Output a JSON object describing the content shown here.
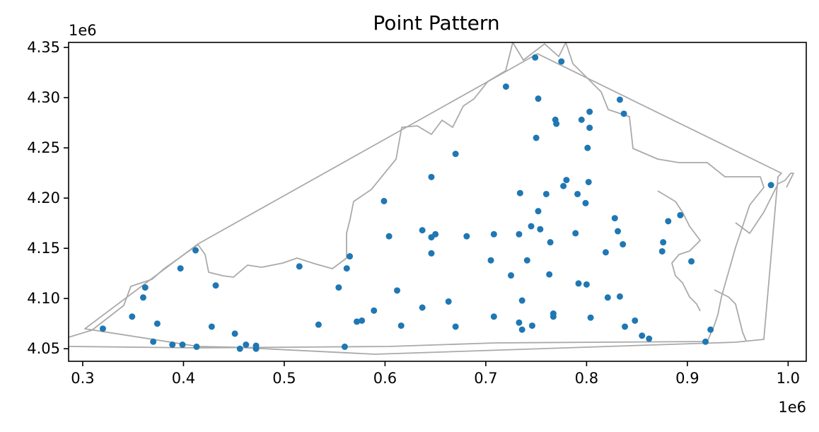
{
  "chart_data": {
    "type": "scatter",
    "title": "Point Pattern",
    "xlabel": "",
    "ylabel": "",
    "x_offset_label": "1e6",
    "y_offset_label": "1e6",
    "xlim": [
      0.286,
      1.018
    ],
    "ylim": [
      4.0375,
      4.355
    ],
    "x_ticks": [
      {
        "value": 0.3,
        "label": "0.3"
      },
      {
        "value": 0.4,
        "label": "0.4"
      },
      {
        "value": 0.5,
        "label": "0.5"
      },
      {
        "value": 0.6,
        "label": "0.6"
      },
      {
        "value": 0.7,
        "label": "0.7"
      },
      {
        "value": 0.8,
        "label": "0.8"
      },
      {
        "value": 0.9,
        "label": "0.9"
      },
      {
        "value": 1.0,
        "label": "1.0"
      }
    ],
    "y_ticks": [
      {
        "value": 4.05,
        "label": "4.05"
      },
      {
        "value": 4.1,
        "label": "4.10"
      },
      {
        "value": 4.15,
        "label": "4.15"
      },
      {
        "value": 4.2,
        "label": "4.20"
      },
      {
        "value": 4.25,
        "label": "4.25"
      },
      {
        "value": 4.3,
        "label": "4.30"
      },
      {
        "value": 4.35,
        "label": "4.35"
      }
    ],
    "grid": false,
    "colors": {
      "points": "#1f77b4",
      "boundary": "#aaaaaa",
      "axes": "#000000"
    },
    "points": [
      [
        0.749,
        4.34
      ],
      [
        0.775,
        4.336
      ],
      [
        0.72,
        4.311
      ],
      [
        0.752,
        4.299
      ],
      [
        0.833,
        4.298
      ],
      [
        0.803,
        4.286
      ],
      [
        0.837,
        4.284
      ],
      [
        0.769,
        4.278
      ],
      [
        0.795,
        4.278
      ],
      [
        0.77,
        4.274
      ],
      [
        0.803,
        4.27
      ],
      [
        0.75,
        4.26
      ],
      [
        0.801,
        4.25
      ],
      [
        0.67,
        4.244
      ],
      [
        0.646,
        4.221
      ],
      [
        0.78,
        4.218
      ],
      [
        0.802,
        4.216
      ],
      [
        0.983,
        4.213
      ],
      [
        0.777,
        4.212
      ],
      [
        0.734,
        4.205
      ],
      [
        0.76,
        4.204
      ],
      [
        0.791,
        4.204
      ],
      [
        0.599,
        4.197
      ],
      [
        0.799,
        4.195
      ],
      [
        0.752,
        4.187
      ],
      [
        0.893,
        4.183
      ],
      [
        0.828,
        4.18
      ],
      [
        0.881,
        4.177
      ],
      [
        0.745,
        4.172
      ],
      [
        0.754,
        4.169
      ],
      [
        0.637,
        4.168
      ],
      [
        0.831,
        4.167
      ],
      [
        0.789,
        4.165
      ],
      [
        0.708,
        4.164
      ],
      [
        0.733,
        4.164
      ],
      [
        0.65,
        4.164
      ],
      [
        0.604,
        4.162
      ],
      [
        0.681,
        4.162
      ],
      [
        0.646,
        4.161
      ],
      [
        0.876,
        4.156
      ],
      [
        0.764,
        4.156
      ],
      [
        0.836,
        4.154
      ],
      [
        0.412,
        4.148
      ],
      [
        0.875,
        4.147
      ],
      [
        0.819,
        4.146
      ],
      [
        0.646,
        4.145
      ],
      [
        0.565,
        4.142
      ],
      [
        0.705,
        4.138
      ],
      [
        0.741,
        4.138
      ],
      [
        0.904,
        4.137
      ],
      [
        0.515,
        4.132
      ],
      [
        0.562,
        4.13
      ],
      [
        0.397,
        4.13
      ],
      [
        0.763,
        4.124
      ],
      [
        0.725,
        4.123
      ],
      [
        0.792,
        4.115
      ],
      [
        0.8,
        4.114
      ],
      [
        0.432,
        4.113
      ],
      [
        0.362,
        4.111
      ],
      [
        0.554,
        4.111
      ],
      [
        0.612,
        4.108
      ],
      [
        0.833,
        4.102
      ],
      [
        0.36,
        4.101
      ],
      [
        0.821,
        4.101
      ],
      [
        0.736,
        4.098
      ],
      [
        0.663,
        4.097
      ],
      [
        0.637,
        4.091
      ],
      [
        0.589,
        4.088
      ],
      [
        0.767,
        4.085
      ],
      [
        0.349,
        4.082
      ],
      [
        0.708,
        4.082
      ],
      [
        0.767,
        4.082
      ],
      [
        0.804,
        4.081
      ],
      [
        0.848,
        4.078
      ],
      [
        0.572,
        4.077
      ],
      [
        0.577,
        4.078
      ],
      [
        0.733,
        4.076
      ],
      [
        0.374,
        4.075
      ],
      [
        0.534,
        4.074
      ],
      [
        0.746,
        4.073
      ],
      [
        0.616,
        4.073
      ],
      [
        0.428,
        4.072
      ],
      [
        0.838,
        4.072
      ],
      [
        0.67,
        4.072
      ],
      [
        0.32,
        4.07
      ],
      [
        0.736,
        4.069
      ],
      [
        0.923,
        4.069
      ],
      [
        0.451,
        4.065
      ],
      [
        0.855,
        4.063
      ],
      [
        0.862,
        4.06
      ],
      [
        0.37,
        4.057
      ],
      [
        0.918,
        4.057
      ],
      [
        0.389,
        4.054
      ],
      [
        0.399,
        4.054
      ],
      [
        0.462,
        4.054
      ],
      [
        0.472,
        4.053
      ],
      [
        0.56,
        4.052
      ],
      [
        0.413,
        4.052
      ],
      [
        0.456,
        4.05
      ],
      [
        0.472,
        4.05
      ]
    ]
  }
}
